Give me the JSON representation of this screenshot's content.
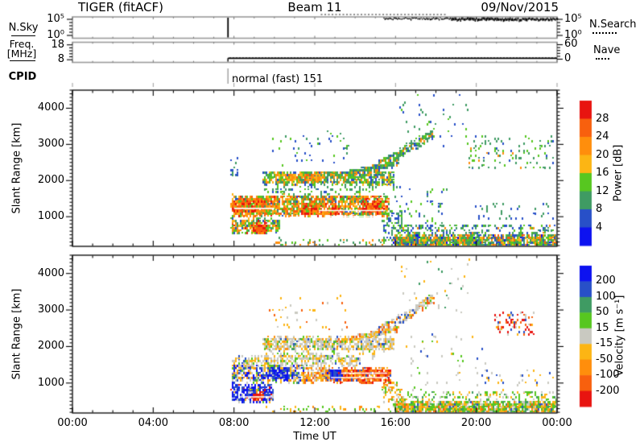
{
  "header": {
    "title": "TIGER (fitACF)",
    "beam": "Beam 11",
    "date": "09/Nov/2015"
  },
  "top_panels": {
    "nsky": {
      "label": "N.Sky",
      "left_ticks": [
        "10⁵",
        "10⁰"
      ],
      "right_ticks": [
        "10⁵",
        "10⁰"
      ],
      "right_legend": "N.Search"
    },
    "freq": {
      "label_line1": "Freq.",
      "label_line2": "[MHz]",
      "left_ticks": [
        "18",
        "8"
      ],
      "right_ticks": [
        "60",
        "0"
      ],
      "right_legend": "Nave"
    },
    "cpid": {
      "label": "CPID",
      "value": "normal (fast) 151"
    }
  },
  "xaxis": {
    "label": "Time UT",
    "tick_labels": [
      "00:00",
      "04:00",
      "08:00",
      "12:00",
      "16:00",
      "20:00",
      "00:00"
    ]
  },
  "power_panel": {
    "ylabel": "Slant Range [km]",
    "yticks": [
      "4000",
      "3000",
      "2000",
      "1000"
    ],
    "cbar_label": "Power [dB]",
    "cbar_ticks": [
      "28",
      "24",
      "20",
      "16",
      "12",
      "8",
      "4"
    ]
  },
  "velocity_panel": {
    "ylabel": "Slant Range [km]",
    "yticks": [
      "4000",
      "3000",
      "2000",
      "1000"
    ],
    "cbar_label": "Velocity [m s⁻¹]",
    "cbar_ticks": [
      "200",
      "100",
      "50",
      "15",
      "-15",
      "-50",
      "-100",
      "-200"
    ]
  },
  "chart_data": {
    "type": "heatmap",
    "time_axis": {
      "label": "Time UT",
      "start_hour": 0,
      "end_hour": 24,
      "tick_hours": [
        0,
        4,
        8,
        12,
        16,
        20,
        24
      ]
    },
    "range_axis": {
      "label": "Slant Range [km]",
      "min_km": 180,
      "max_km": 4500,
      "tick_values_km": [
        1000,
        2000,
        3000,
        4000
      ]
    },
    "palette": {
      "p1": "#0d12f0",
      "p2": "#2850c8",
      "p3": "#3f9b63",
      "p4": "#57c720",
      "p5": "#fcb514",
      "p6": "#ff8e0c",
      "p7": "#f8600e",
      "p8": "#e81410",
      "v1": "#0d12f0",
      "v2": "#2850c8",
      "v3": "#3f9b63",
      "v4": "#57c720",
      "v5": "#c9c9c1",
      "v6": "#fcb514",
      "v7": "#ff8e0c",
      "v8": "#f8600e",
      "v9": "#e81410"
    },
    "aux_panels": {
      "nsky": {
        "spike_hour": 7.7,
        "high_trace_hours": [
          15.4,
          24
        ],
        "nsearch_dotted_hours": [
          12.3,
          18.5
        ]
      },
      "freq": {
        "on_hour": 7.7,
        "freq_mhz": 9.0,
        "nave": 7
      },
      "cpid": {
        "start_hour": 7.7,
        "mode": "normal (fast) 151"
      }
    },
    "panels": [
      {
        "name": "power",
        "units": "dB",
        "colorbar": {
          "values": [
            28,
            24,
            20,
            16,
            12,
            8,
            4
          ],
          "colors_top_to_bottom": [
            "#e81410",
            "#f8600e",
            "#ff8e0c",
            "#fcb514",
            "#57c720",
            "#3f9b63",
            "#2850c8",
            "#0d12f0"
          ]
        },
        "gaps": [
          {
            "t": [
              8.0,
              10.0
            ],
            "r": 1230
          },
          {
            "t": [
              12.2,
              15.5
            ],
            "r": 1170
          },
          {
            "t": [
              12.5,
              15.3
            ],
            "r": 1010
          }
        ],
        "clusters": [
          {
            "t": [
              7.85,
              15.6
            ],
            "r": [
              1060,
              1620
            ],
            "n": 1500,
            "w": {
              "p7": 0.22,
              "p6": 0.28,
              "p5": 0.14,
              "p4": 0.16,
              "p3": 0.12,
              "p8": 0.04,
              "p2": 0.04
            }
          },
          {
            "t": [
              7.9,
              9.6
            ],
            "r": [
              1150,
              1500
            ],
            "n": 260,
            "w": {
              "p8": 0.3,
              "p7": 0.35,
              "p6": 0.25,
              "p4": 0.1
            }
          },
          {
            "t": [
              11.3,
              13.2
            ],
            "r": [
              1080,
              1380
            ],
            "n": 240,
            "w": {
              "p8": 0.28,
              "p7": 0.34,
              "p6": 0.26,
              "p4": 0.12
            }
          },
          {
            "t": [
              14.3,
              15.5
            ],
            "r": [
              1120,
              1450
            ],
            "n": 170,
            "w": {
              "p8": 0.3,
              "p7": 0.3,
              "p6": 0.3,
              "p4": 0.1
            }
          },
          {
            "t": [
              9.4,
              15.9
            ],
            "r": [
              1930,
              2280
            ],
            "n": 750,
            "w": {
              "p3": 0.34,
              "p4": 0.3,
              "p5": 0.12,
              "p6": 0.12,
              "p2": 0.12
            }
          },
          {
            "t": [
              10.0,
              12.3
            ],
            "r": [
              2000,
              2220
            ],
            "n": 140,
            "w": {
              "p6": 0.45,
              "p5": 0.3,
              "p7": 0.15,
              "p4": 0.1
            }
          },
          {
            "t": [
              13.0,
              16.1
            ],
            "r": [
              2150,
              2520
            ],
            "n": 220,
            "diag": true,
            "spread": 130,
            "w": {
              "p3": 0.4,
              "p4": 0.3,
              "p6": 0.15,
              "p2": 0.15
            }
          },
          {
            "t": [
              7.85,
              10.2
            ],
            "r": [
              560,
              960
            ],
            "n": 300,
            "w": {
              "p4": 0.28,
              "p3": 0.22,
              "p6": 0.2,
              "p5": 0.12,
              "p8": 0.08,
              "p2": 0.1
            }
          },
          {
            "t": [
              8.9,
              9.6
            ],
            "r": [
              600,
              800
            ],
            "n": 70,
            "w": {
              "p8": 0.55,
              "p7": 0.3,
              "p6": 0.15
            }
          },
          {
            "t": [
              14.9,
              17.9
            ],
            "r": [
              2350,
              3350
            ],
            "n": 230,
            "diag": true,
            "spread": 260,
            "w": {
              "p3": 0.38,
              "p4": 0.26,
              "p2": 0.2,
              "p6": 0.16
            }
          },
          {
            "t": [
              9.7,
              13.6
            ],
            "r": [
              2450,
              3450
            ],
            "n": 45,
            "w": {
              "p3": 0.4,
              "p2": 0.35,
              "p4": 0.25
            }
          },
          {
            "t": [
              16.2,
              19.6
            ],
            "r": [
              2950,
              4420
            ],
            "n": 40,
            "w": {
              "p3": 0.45,
              "p2": 0.35,
              "p4": 0.2
            }
          },
          {
            "t": [
              15.9,
              23.97
            ],
            "r": [
              190,
              520
            ],
            "n": 1400,
            "w": {
              "p3": 0.28,
              "p4": 0.2,
              "p6": 0.16,
              "p5": 0.1,
              "p2": 0.12,
              "p7": 0.08,
              "p1": 0.06
            }
          },
          {
            "t": [
              16.2,
              23.97
            ],
            "r": [
              520,
              820
            ],
            "n": 220,
            "w": {
              "p3": 0.4,
              "p4": 0.3,
              "p2": 0.2,
              "p6": 0.1
            }
          },
          {
            "t": [
              19.6,
              23.8
            ],
            "r": [
              2350,
              3250
            ],
            "n": 110,
            "w": {
              "p3": 0.45,
              "p4": 0.3,
              "p6": 0.12,
              "p2": 0.13
            }
          },
          {
            "t": [
              19.8,
              23.8
            ],
            "r": [
              950,
              1400
            ],
            "n": 40,
            "w": {
              "p2": 0.5,
              "p3": 0.5
            }
          },
          {
            "t": [
              10.0,
              15.8
            ],
            "r": [
              170,
              420
            ],
            "n": 60,
            "w": {
              "p3": 0.4,
              "p4": 0.3,
              "p6": 0.3
            }
          },
          {
            "t": [
              7.8,
              8.15
            ],
            "r": [
              2150,
              2650
            ],
            "n": 18,
            "w": {
              "p3": 0.5,
              "p2": 0.5
            }
          },
          {
            "t": [
              9.5,
              15.0
            ],
            "r": [
              1650,
              1900
            ],
            "n": 80,
            "w": {
              "p3": 0.5,
              "p4": 0.3,
              "p2": 0.2
            }
          },
          {
            "t": [
              15.3,
              16.3
            ],
            "r": [
              400,
              1200
            ],
            "n": 90,
            "w": {
              "p3": 0.4,
              "p4": 0.3,
              "p2": 0.3
            }
          },
          {
            "t": [
              15.8,
              18.5
            ],
            "r": [
              700,
              1900
            ],
            "n": 60,
            "w": {
              "p3": 0.4,
              "p2": 0.3,
              "p4": 0.3
            }
          }
        ]
      },
      {
        "name": "velocity",
        "units": "m s⁻¹",
        "colorbar": {
          "values": [
            200,
            100,
            50,
            15,
            -15,
            -50,
            -100,
            -200
          ],
          "colors_top_to_bottom": [
            "#0d12f0",
            "#2850c8",
            "#3f9b63",
            "#57c720",
            "#c9c9c1",
            "#fcb514",
            "#ff8e0c",
            "#f8600e",
            "#e81410"
          ]
        },
        "gaps": [
          {
            "t": [
              12.8,
              15.6
            ],
            "r": 1150
          },
          {
            "t": [
              13.3,
              15.6
            ],
            "r": 1270
          },
          {
            "t": [
              8.3,
              9.9
            ],
            "r": 620
          }
        ],
        "clusters": [
          {
            "t": [
              9.4,
              15.9
            ],
            "r": [
              1930,
              2280
            ],
            "n": 700,
            "w": {
              "v5": 0.56,
              "v6": 0.18,
              "v4": 0.08,
              "v3": 0.05,
              "v7": 0.06,
              "v2": 0.07
            }
          },
          {
            "t": [
              13.0,
              16.1
            ],
            "r": [
              2150,
              2520
            ],
            "n": 200,
            "diag": true,
            "spread": 130,
            "w": {
              "v5": 0.45,
              "v6": 0.3,
              "v4": 0.1,
              "v8": 0.15
            }
          },
          {
            "t": [
              7.9,
              14.2
            ],
            "r": [
              1480,
              1780
            ],
            "n": 330,
            "w": {
              "v5": 0.6,
              "v6": 0.22,
              "v4": 0.1,
              "v2": 0.08
            }
          },
          {
            "t": [
              7.85,
              11.6
            ],
            "r": [
              1060,
              1500
            ],
            "n": 520,
            "w": {
              "v5": 0.24,
              "v2": 0.2,
              "v1": 0.16,
              "v6": 0.16,
              "v7": 0.1,
              "v4": 0.08,
              "v3": 0.06
            }
          },
          {
            "t": [
              9.6,
              10.7
            ],
            "r": [
              1150,
              1420
            ],
            "n": 150,
            "w": {
              "v1": 0.55,
              "v2": 0.35,
              "v5": 0.1
            }
          },
          {
            "t": [
              12.6,
              15.7
            ],
            "r": [
              1060,
              1420
            ],
            "n": 600,
            "w": {
              "v9": 0.3,
              "v8": 0.3,
              "v7": 0.22,
              "v6": 0.1,
              "v2": 0.05,
              "v5": 0.03
            }
          },
          {
            "t": [
              12.3,
              13.3
            ],
            "r": [
              1120,
              1400
            ],
            "n": 130,
            "w": {
              "v1": 0.5,
              "v2": 0.4,
              "v9": 0.1
            }
          },
          {
            "t": [
              11.4,
              12.7
            ],
            "r": [
              1060,
              1450
            ],
            "n": 160,
            "w": {
              "v7": 0.3,
              "v6": 0.3,
              "v8": 0.2,
              "v5": 0.2
            }
          },
          {
            "t": [
              7.85,
              9.9
            ],
            "r": [
              520,
              960
            ],
            "n": 320,
            "w": {
              "v1": 0.42,
              "v2": 0.34,
              "v5": 0.08,
              "v6": 0.06,
              "v9": 0.05,
              "v4": 0.05
            }
          },
          {
            "t": [
              8.85,
              9.45
            ],
            "r": [
              560,
              760
            ],
            "n": 55,
            "w": {
              "v9": 0.6,
              "v8": 0.25,
              "v7": 0.15
            }
          },
          {
            "t": [
              14.9,
              17.9
            ],
            "r": [
              2350,
              3350
            ],
            "n": 200,
            "diag": true,
            "spread": 260,
            "w": {
              "v5": 0.42,
              "v6": 0.2,
              "v4": 0.12,
              "v2": 0.12,
              "v8": 0.14
            }
          },
          {
            "t": [
              9.7,
              13.6
            ],
            "r": [
              2450,
              3450
            ],
            "n": 40,
            "w": {
              "v6": 0.4,
              "v5": 0.3,
              "v8": 0.3
            }
          },
          {
            "t": [
              16.2,
              19.6
            ],
            "r": [
              2950,
              4420
            ],
            "n": 35,
            "w": {
              "v5": 0.4,
              "v3": 0.3,
              "v6": 0.3
            }
          },
          {
            "t": [
              15.9,
              23.97
            ],
            "r": [
              190,
              520
            ],
            "n": 1250,
            "w": {
              "v4": 0.34,
              "v6": 0.24,
              "v5": 0.12,
              "v7": 0.12,
              "v3": 0.1,
              "v2": 0.04,
              "v8": 0.04
            }
          },
          {
            "t": [
              16.2,
              23.97
            ],
            "r": [
              520,
              820
            ],
            "n": 180,
            "w": {
              "v4": 0.4,
              "v6": 0.3,
              "v5": 0.15,
              "v3": 0.15
            }
          },
          {
            "t": [
              20.9,
              22.8
            ],
            "r": [
              2350,
              2950
            ],
            "n": 90,
            "w": {
              "v9": 0.45,
              "v8": 0.2,
              "v2": 0.12,
              "v5": 0.13,
              "v6": 0.1
            }
          },
          {
            "t": [
              19.8,
              23.8
            ],
            "r": [
              950,
              1400
            ],
            "n": 30,
            "w": {
              "v2": 0.4,
              "v5": 0.3,
              "v6": 0.3
            }
          },
          {
            "t": [
              9.5,
              15.8
            ],
            "r": [
              170,
              420
            ],
            "n": 55,
            "w": {
              "v4": 0.4,
              "v6": 0.35,
              "v7": 0.25
            }
          },
          {
            "t": [
              9.5,
              15.0
            ],
            "r": [
              1650,
              1900
            ],
            "n": 70,
            "w": {
              "v5": 0.5,
              "v6": 0.25,
              "v4": 0.25
            }
          },
          {
            "t": [
              15.3,
              16.3
            ],
            "r": [
              400,
              1100
            ],
            "n": 70,
            "w": {
              "v6": 0.3,
              "v7": 0.25,
              "v4": 0.25,
              "v5": 0.2
            }
          },
          {
            "t": [
              16.5,
              20.5
            ],
            "r": [
              900,
              2400
            ],
            "n": 50,
            "w": {
              "v5": 0.4,
              "v6": 0.25,
              "v4": 0.2,
              "v2": 0.15
            }
          }
        ]
      }
    ]
  }
}
